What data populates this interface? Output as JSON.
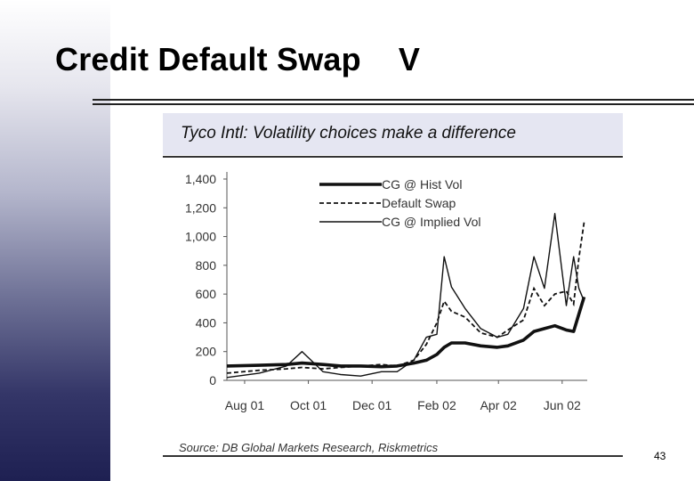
{
  "slide": {
    "title_left": "Credit Default Swap",
    "title_right": "V",
    "page_number": "43"
  },
  "colors": {
    "side_band_top": "#ffffff",
    "side_band_bottom": "#1e2052",
    "chart_header_bg": "#e5e6f2"
  },
  "chart_data": {
    "type": "line",
    "title": "Tyco Intl: Volatility choices make a difference",
    "source": "Source: DB Global Markets Research, Riskmetrics",
    "xlabel": "",
    "ylabel": "",
    "ylim": [
      0,
      1400
    ],
    "yticks": [
      0,
      200,
      400,
      600,
      800,
      1000,
      1200,
      1400
    ],
    "ytick_labels": [
      "0",
      "200",
      "400",
      "600",
      "800",
      "1,000",
      "1,200",
      "1,400"
    ],
    "xlim": [
      "2001-07-15",
      "2002-06-25"
    ],
    "x_ticks": [
      {
        "date": "2001-08-01",
        "label": "Aug 01"
      },
      {
        "date": "2001-10-01",
        "label": "Oct 01"
      },
      {
        "date": "2001-12-01",
        "label": "Dec 01"
      },
      {
        "date": "2002-02-01",
        "label": "Feb 02"
      },
      {
        "date": "2002-04-01",
        "label": "Apr 02"
      },
      {
        "date": "2002-06-01",
        "label": "Jun 02"
      }
    ],
    "legend_position": "top-center",
    "grid": false,
    "series": [
      {
        "name": "CG @ Hist Vol",
        "style": "thick",
        "points": [
          [
            "2001-07-15",
            100
          ],
          [
            "2001-08-15",
            105
          ],
          [
            "2001-09-10",
            110
          ],
          [
            "2001-09-25",
            120
          ],
          [
            "2001-10-15",
            110
          ],
          [
            "2001-11-01",
            100
          ],
          [
            "2001-11-20",
            100
          ],
          [
            "2001-12-10",
            95
          ],
          [
            "2001-12-25",
            100
          ],
          [
            "2002-01-10",
            120
          ],
          [
            "2002-01-22",
            140
          ],
          [
            "2002-02-01",
            180
          ],
          [
            "2002-02-08",
            230
          ],
          [
            "2002-02-15",
            260
          ],
          [
            "2002-02-28",
            260
          ],
          [
            "2002-03-15",
            240
          ],
          [
            "2002-03-31",
            230
          ],
          [
            "2002-04-10",
            240
          ],
          [
            "2002-04-25",
            280
          ],
          [
            "2002-05-05",
            340
          ],
          [
            "2002-05-15",
            360
          ],
          [
            "2002-05-25",
            380
          ],
          [
            "2002-06-05",
            350
          ],
          [
            "2002-06-12",
            340
          ],
          [
            "2002-06-17",
            460
          ],
          [
            "2002-06-22",
            580
          ]
        ]
      },
      {
        "name": "Default Swap",
        "style": "dashed",
        "points": [
          [
            "2001-07-15",
            50
          ],
          [
            "2001-08-15",
            70
          ],
          [
            "2001-09-10",
            80
          ],
          [
            "2001-09-25",
            90
          ],
          [
            "2001-10-15",
            80
          ],
          [
            "2001-11-01",
            90
          ],
          [
            "2001-11-20",
            100
          ],
          [
            "2001-12-10",
            110
          ],
          [
            "2001-12-25",
            100
          ],
          [
            "2002-01-10",
            140
          ],
          [
            "2002-01-22",
            250
          ],
          [
            "2002-02-01",
            400
          ],
          [
            "2002-02-08",
            550
          ],
          [
            "2002-02-15",
            480
          ],
          [
            "2002-02-28",
            440
          ],
          [
            "2002-03-15",
            330
          ],
          [
            "2002-03-31",
            300
          ],
          [
            "2002-04-10",
            350
          ],
          [
            "2002-04-25",
            420
          ],
          [
            "2002-05-05",
            640
          ],
          [
            "2002-05-15",
            520
          ],
          [
            "2002-05-25",
            600
          ],
          [
            "2002-06-05",
            620
          ],
          [
            "2002-06-12",
            530
          ],
          [
            "2002-06-17",
            850
          ],
          [
            "2002-06-22",
            1100
          ]
        ]
      },
      {
        "name": "CG @ Implied Vol",
        "style": "thin",
        "points": [
          [
            "2001-07-15",
            20
          ],
          [
            "2001-08-15",
            50
          ],
          [
            "2001-09-10",
            100
          ],
          [
            "2001-09-25",
            200
          ],
          [
            "2001-10-15",
            60
          ],
          [
            "2001-11-01",
            40
          ],
          [
            "2001-11-20",
            30
          ],
          [
            "2001-12-10",
            60
          ],
          [
            "2001-12-25",
            60
          ],
          [
            "2002-01-10",
            140
          ],
          [
            "2002-01-22",
            300
          ],
          [
            "2002-02-01",
            320
          ],
          [
            "2002-02-08",
            860
          ],
          [
            "2002-02-15",
            650
          ],
          [
            "2002-02-28",
            500
          ],
          [
            "2002-03-15",
            360
          ],
          [
            "2002-03-31",
            300
          ],
          [
            "2002-04-10",
            320
          ],
          [
            "2002-04-25",
            500
          ],
          [
            "2002-05-05",
            860
          ],
          [
            "2002-05-15",
            640
          ],
          [
            "2002-05-25",
            1160
          ],
          [
            "2002-06-05",
            520
          ],
          [
            "2002-06-12",
            860
          ],
          [
            "2002-06-17",
            640
          ],
          [
            "2002-06-22",
            550
          ]
        ]
      }
    ]
  }
}
